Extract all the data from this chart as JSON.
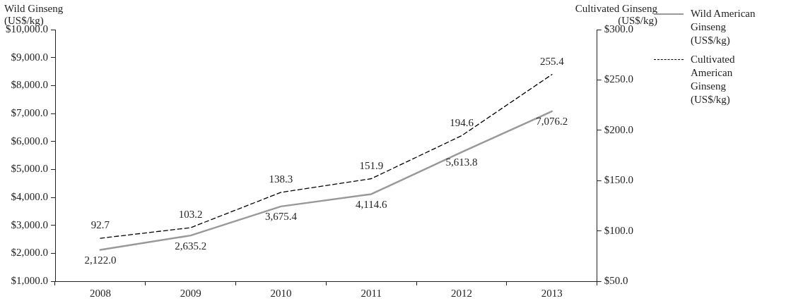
{
  "chart_data": {
    "type": "line",
    "ylabel": "Wild Ginseng (US$/kg)",
    "y2label": "Cultivated Ginseng (US$/kg)",
    "categories": [
      "2008",
      "2009",
      "2010",
      "2011",
      "2012",
      "2013"
    ],
    "series": [
      {
        "name": "Wild American Ginseng (US$/kg)",
        "color": "#999999",
        "line_style": "solid",
        "values": [
          2122.0,
          2635.2,
          3675.4,
          4114.6,
          5613.8,
          7076.2
        ],
        "value_labels": [
          "2,122.0",
          "2,635.2",
          "3,675.4",
          "4,114.6",
          "5,613.8",
          "7,076.2"
        ]
      },
      {
        "name": "Cultivated American Ginseng (US$/kg)",
        "color": "#000000",
        "line_style": "dashed",
        "axis": "y2",
        "values": [
          92.7,
          103.2,
          138.3,
          151.9,
          194.6,
          255.4
        ],
        "value_labels": [
          "92.7",
          "103.2",
          "138.3",
          "151.9",
          "194.6",
          "255.4"
        ]
      }
    ],
    "ylim": [
      1000,
      10000
    ],
    "yticks": [
      {
        "value": 1000,
        "label": "$1,000.0"
      },
      {
        "value": 2000,
        "label": "$2,000.0"
      },
      {
        "value": 3000,
        "label": "$3,000.0"
      },
      {
        "value": 4000,
        "label": "$4,000.0"
      },
      {
        "value": 5000,
        "label": "$5,000.0"
      },
      {
        "value": 6000,
        "label": "$6,000.0"
      },
      {
        "value": 7000,
        "label": "$7,000.0"
      },
      {
        "value": 8000,
        "label": "$8,000.0"
      },
      {
        "value": 9000,
        "label": "$9,000.0"
      },
      {
        "value": 10000,
        "label": "$10,000.0"
      }
    ],
    "y2lim": [
      50,
      300
    ],
    "y2ticks": [
      {
        "value": 50,
        "label": "$50.0"
      },
      {
        "value": 100,
        "label": "$100.0"
      },
      {
        "value": 150,
        "label": "$150.0"
      },
      {
        "value": 200,
        "label": "$200.0"
      },
      {
        "value": 250,
        "label": "$250.0"
      },
      {
        "value": 300,
        "label": "$300.0"
      }
    ],
    "grid": false,
    "legend": "right",
    "marker": "none"
  }
}
